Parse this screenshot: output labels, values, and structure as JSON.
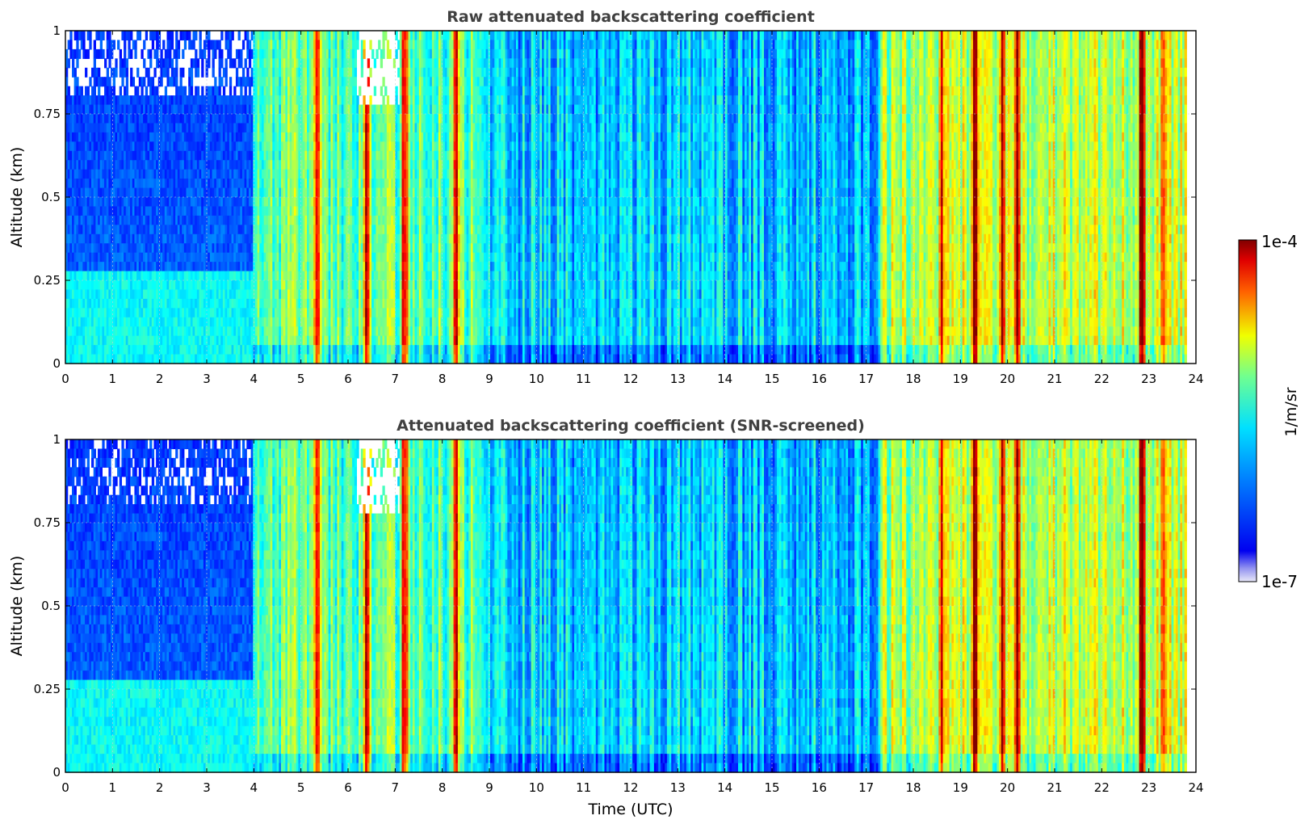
{
  "chart_data": [
    {
      "type": "heatmap",
      "title": "Raw attenuated backscattering coefficient",
      "xlabel": "",
      "ylabel": "Altitude (km)",
      "xlim": [
        0,
        24
      ],
      "ylim": [
        0,
        1
      ],
      "x_ticks": [
        "0",
        "1",
        "2",
        "3",
        "4",
        "5",
        "6",
        "7",
        "8",
        "9",
        "10",
        "11",
        "12",
        "13",
        "14",
        "15",
        "16",
        "17",
        "18",
        "19",
        "20",
        "21",
        "22",
        "23",
        "24"
      ],
      "y_ticks": [
        "0",
        "0.25",
        "0.5",
        "0.75",
        "1"
      ],
      "grid": true,
      "data_end_time": 23.8,
      "features": [
        {
          "time": 5.35,
          "level": 0.97
        },
        {
          "time": 6.4,
          "level": 1.0
        },
        {
          "time": 7.2,
          "level": 0.92
        },
        {
          "time": 8.3,
          "level": 0.85
        },
        {
          "time": 18.6,
          "level": 0.9
        },
        {
          "time": 19.3,
          "level": 0.95
        },
        {
          "time": 19.9,
          "level": 0.95
        },
        {
          "time": 20.2,
          "level": 0.97
        },
        {
          "time": 22.85,
          "level": 1.0
        },
        {
          "time": 23.3,
          "level": 0.9
        }
      ]
    },
    {
      "type": "heatmap",
      "title": "Attenuated backscattering coefficient (SNR-screened)",
      "xlabel": "Time (UTC)",
      "ylabel": "Altitude (km)",
      "xlim": [
        0,
        24
      ],
      "ylim": [
        0,
        1
      ],
      "x_ticks": [
        "0",
        "1",
        "2",
        "3",
        "4",
        "5",
        "6",
        "7",
        "8",
        "9",
        "10",
        "11",
        "12",
        "13",
        "14",
        "15",
        "16",
        "17",
        "18",
        "19",
        "20",
        "21",
        "22",
        "23",
        "24"
      ],
      "y_ticks": [
        "0",
        "0.25",
        "0.5",
        "0.75",
        "1"
      ],
      "grid": true,
      "data_end_time": 23.8,
      "screened": true
    }
  ],
  "colorbar": {
    "max_label": "1e-4",
    "min_label": "1e-7",
    "unit_label": "1/m/sr",
    "colormap": "jet",
    "scale": "log"
  }
}
